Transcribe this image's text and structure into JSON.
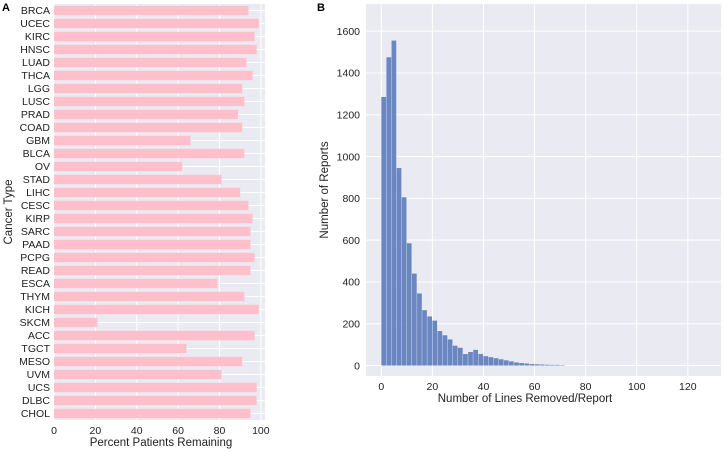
{
  "chart_data": [
    {
      "panel": "A",
      "type": "bar",
      "orientation": "horizontal",
      "title": "",
      "xlabel": "Percent Patients Remaining",
      "ylabel": "Cancer Type",
      "xlim": [
        0,
        102
      ],
      "xticks": [
        0,
        20,
        40,
        60,
        80,
        100
      ],
      "grid": true,
      "bar_color": "#ffc0cb",
      "background": "#eaeaf2",
      "categories": [
        "BRCA",
        "UCEC",
        "KIRC",
        "HNSC",
        "LUAD",
        "THCA",
        "LGG",
        "LUSC",
        "PRAD",
        "COAD",
        "GBM",
        "BLCA",
        "OV",
        "STAD",
        "LIHC",
        "CESC",
        "KIRP",
        "SARC",
        "PAAD",
        "PCPG",
        "READ",
        "ESCA",
        "THYM",
        "KICH",
        "SKCM",
        "ACC",
        "TGCT",
        "MESO",
        "UVM",
        "UCS",
        "DLBC",
        "CHOL"
      ],
      "values": [
        94,
        99,
        97,
        98,
        93,
        96,
        91,
        92,
        89,
        91,
        66,
        92,
        62,
        81,
        90,
        94,
        96,
        95,
        95,
        97,
        95,
        79,
        92,
        99,
        21,
        97,
        64,
        91,
        81,
        98,
        98,
        95
      ]
    },
    {
      "panel": "B",
      "type": "bar",
      "subtype": "histogram",
      "title": "",
      "xlabel": "Number of Lines Removed/Report",
      "ylabel": "Number of Reports",
      "xlim": [
        -6,
        133
      ],
      "ylim": [
        -50,
        1730
      ],
      "xticks": [
        0,
        20,
        40,
        60,
        80,
        100,
        120
      ],
      "yticks": [
        0,
        200,
        400,
        600,
        800,
        1000,
        1200,
        1400,
        1600
      ],
      "grid": true,
      "bar_color": "#6a87c2",
      "background": "#eaeaf2",
      "bin_width": 2,
      "bin_start": 0,
      "values": [
        1285,
        1475,
        1555,
        945,
        805,
        585,
        440,
        345,
        265,
        235,
        215,
        165,
        145,
        125,
        95,
        85,
        55,
        65,
        75,
        55,
        45,
        40,
        35,
        30,
        25,
        20,
        15,
        12,
        10,
        7,
        6,
        5,
        4,
        3,
        3,
        2
      ]
    }
  ]
}
